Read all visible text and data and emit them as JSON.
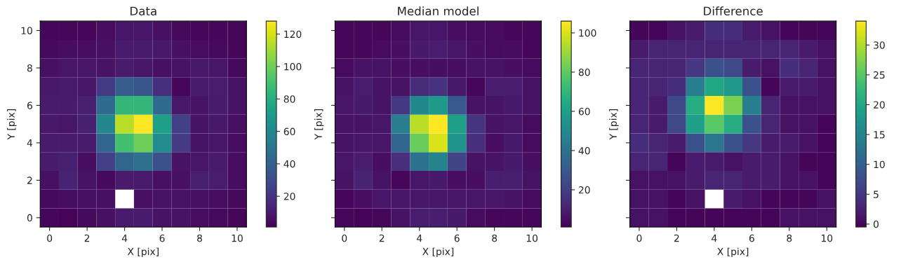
{
  "chart_data": [
    {
      "type": "heatmap",
      "title": "Data",
      "xlabel": "X [pix]",
      "ylabel": "Y [pix]",
      "categories": [
        "0",
        null,
        "2",
        null,
        "4",
        null,
        "6",
        null,
        "8",
        null,
        "10"
      ],
      "y_categories": [
        "10",
        null,
        "8",
        null,
        "6",
        null,
        "4",
        null,
        "2",
        null,
        "0"
      ],
      "cells": [
        [
          3,
          3,
          3,
          5,
          8,
          8,
          6,
          4,
          3,
          3,
          3
        ],
        [
          4,
          5,
          5,
          6,
          10,
          10,
          9,
          6,
          5,
          4,
          3
        ],
        [
          6,
          8,
          8,
          7,
          10,
          8,
          6,
          7,
          9,
          8,
          4
        ],
        [
          9,
          10,
          8,
          22,
          38,
          35,
          18,
          3,
          10,
          11,
          7
        ],
        [
          10,
          10,
          12,
          45,
          85,
          85,
          45,
          9,
          7,
          10,
          7
        ],
        [
          9,
          8,
          12,
          60,
          115,
          128,
          72,
          25,
          7,
          9,
          6
        ],
        [
          10,
          10,
          10,
          42,
          90,
          100,
          62,
          23,
          7,
          8,
          5
        ],
        [
          10,
          12,
          5,
          25,
          42,
          48,
          32,
          7,
          8,
          10,
          5
        ],
        [
          6,
          13,
          7,
          4,
          10,
          10,
          6,
          6,
          12,
          11,
          5
        ],
        [
          4,
          5,
          6,
          6,
          null,
          6,
          7,
          7,
          6,
          5,
          4
        ],
        [
          3,
          2,
          4,
          6,
          10,
          10,
          7,
          7,
          5,
          4,
          3
        ]
      ],
      "clim": [
        1,
        128
      ],
      "cticks": [
        20,
        40,
        60,
        80,
        100,
        120
      ]
    },
    {
      "type": "heatmap",
      "title": "Median model",
      "xlabel": "X [pix]",
      "ylabel": "Y [pix]",
      "tick_labels": "x",
      "categories": [
        "0",
        null,
        "2",
        null,
        "4",
        null,
        "6",
        null,
        "8",
        null,
        "10"
      ],
      "y_categories": [
        "10",
        null,
        "8",
        null,
        "6",
        null,
        "4",
        null,
        "2",
        null,
        "0"
      ],
      "cells": [
        [
          3,
          3,
          3,
          4,
          7,
          7,
          5,
          4,
          4,
          3,
          3
        ],
        [
          3,
          3,
          4,
          5,
          8,
          9,
          7,
          5,
          4,
          4,
          3
        ],
        [
          4,
          6,
          6,
          5,
          5,
          5,
          5,
          6,
          6,
          5,
          4
        ],
        [
          6,
          9,
          6,
          6,
          14,
          16,
          8,
          3,
          9,
          9,
          6
        ],
        [
          7,
          8,
          6,
          18,
          50,
          58,
          30,
          6,
          6,
          8,
          6
        ],
        [
          6,
          6,
          7,
          45,
          95,
          106,
          60,
          17,
          6,
          7,
          4
        ],
        [
          6,
          7,
          7,
          35,
          82,
          100,
          55,
          15,
          5,
          8,
          4
        ],
        [
          7,
          9,
          5,
          15,
          40,
          48,
          22,
          6,
          6,
          8,
          5
        ],
        [
          6,
          11,
          6,
          3,
          7,
          8,
          5,
          5,
          10,
          10,
          6
        ],
        [
          3,
          5,
          7,
          7,
          7,
          7,
          7,
          7,
          7,
          6,
          4
        ],
        [
          3,
          2,
          3,
          6,
          9,
          10,
          8,
          4,
          3,
          3,
          3
        ]
      ],
      "clim": [
        1,
        106
      ],
      "cticks": [
        20,
        40,
        60,
        80,
        100
      ]
    },
    {
      "type": "heatmap",
      "title": "Difference",
      "xlabel": "X [pix]",
      "ylabel": "Y [pix]",
      "tick_labels": "x",
      "categories": [
        "0",
        null,
        "2",
        null,
        "4",
        null,
        "6",
        null,
        "8",
        null,
        "10"
      ],
      "y_categories": [
        "10",
        null,
        "8",
        null,
        "6",
        null,
        "4",
        null,
        "2",
        null,
        "0"
      ],
      "cells": [
        [
          0,
          0,
          1,
          2,
          4,
          4,
          2,
          1,
          0,
          0,
          0
        ],
        [
          2,
          3,
          3,
          3,
          3,
          3,
          3,
          3,
          3,
          2,
          1
        ],
        [
          3,
          3,
          3,
          5,
          8,
          7,
          2,
          1,
          4,
          3,
          1
        ],
        [
          3,
          3,
          4,
          14,
          20,
          18,
          8,
          0,
          2,
          2,
          1
        ],
        [
          3,
          2,
          7,
          21,
          34,
          27,
          14,
          3,
          1,
          1,
          1
        ],
        [
          3,
          2,
          7,
          19,
          25,
          21,
          8,
          3,
          1,
          1,
          0
        ],
        [
          4,
          3,
          2,
          8,
          13,
          8,
          5,
          2,
          2,
          1,
          0
        ],
        [
          3,
          3,
          0,
          2,
          2,
          1,
          2,
          2,
          1,
          0,
          0
        ],
        [
          1,
          1,
          1,
          2,
          3,
          3,
          2,
          2,
          1,
          1,
          0
        ],
        [
          1,
          1,
          0,
          1,
          null,
          2,
          1,
          0,
          0,
          0,
          1
        ],
        [
          1,
          1,
          0,
          0,
          0,
          0,
          0,
          0,
          1,
          1,
          1
        ]
      ],
      "clim": [
        -0.5,
        34
      ],
      "cticks": [
        0,
        5,
        10,
        15,
        20,
        25,
        30
      ]
    }
  ]
}
